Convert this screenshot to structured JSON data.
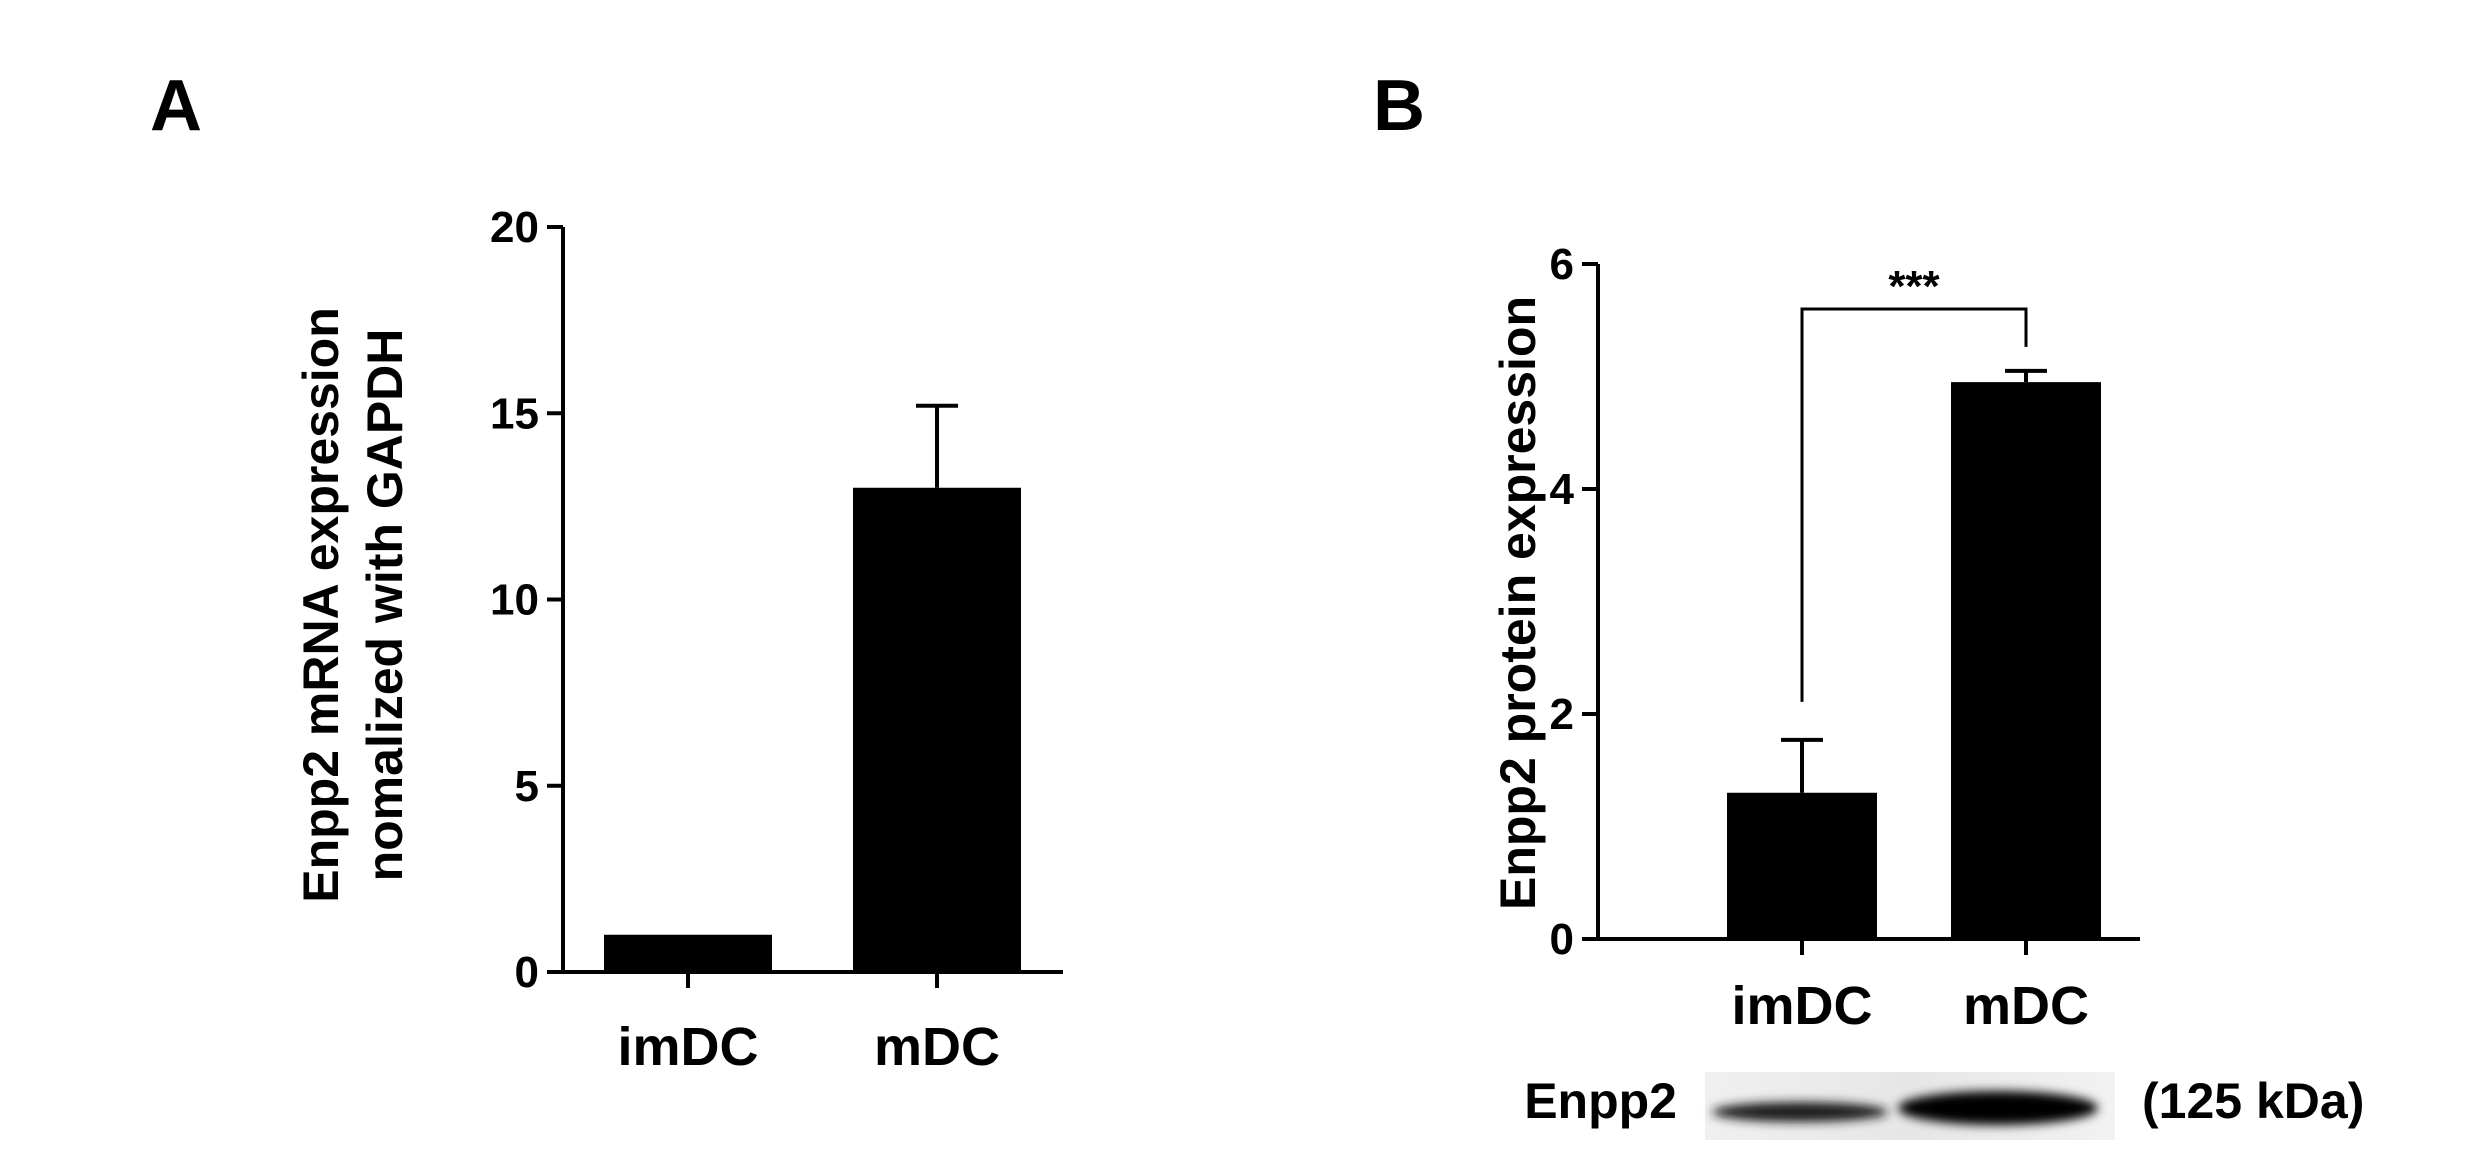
{
  "panels": {
    "a_label": "A",
    "b_label": "B"
  },
  "chart_data": [
    {
      "panel": "A",
      "type": "bar",
      "categories": [
        "imDC",
        "mDC"
      ],
      "values": [
        1.0,
        13.0
      ],
      "error": [
        0,
        2.2
      ],
      "ylabel_lines": [
        "Enpp2 mRNA expression",
        "nomalized with GAPDH"
      ],
      "ylim": [
        0,
        20
      ],
      "yticks": [
        0,
        5,
        10,
        15,
        20
      ],
      "bar_color": "#000000",
      "grid": false
    },
    {
      "panel": "B",
      "type": "bar",
      "categories": [
        "imDC",
        "mDC"
      ],
      "values": [
        1.3,
        4.95
      ],
      "error": [
        0.47,
        0.1
      ],
      "ylabel": "Enpp2 protein expression",
      "ylim": [
        0,
        6
      ],
      "yticks": [
        0,
        2,
        4,
        6
      ],
      "bar_color": "#000000",
      "grid": false,
      "significance": "***",
      "blot": {
        "label": "Enpp2",
        "size": "(125 kDa)"
      }
    }
  ]
}
